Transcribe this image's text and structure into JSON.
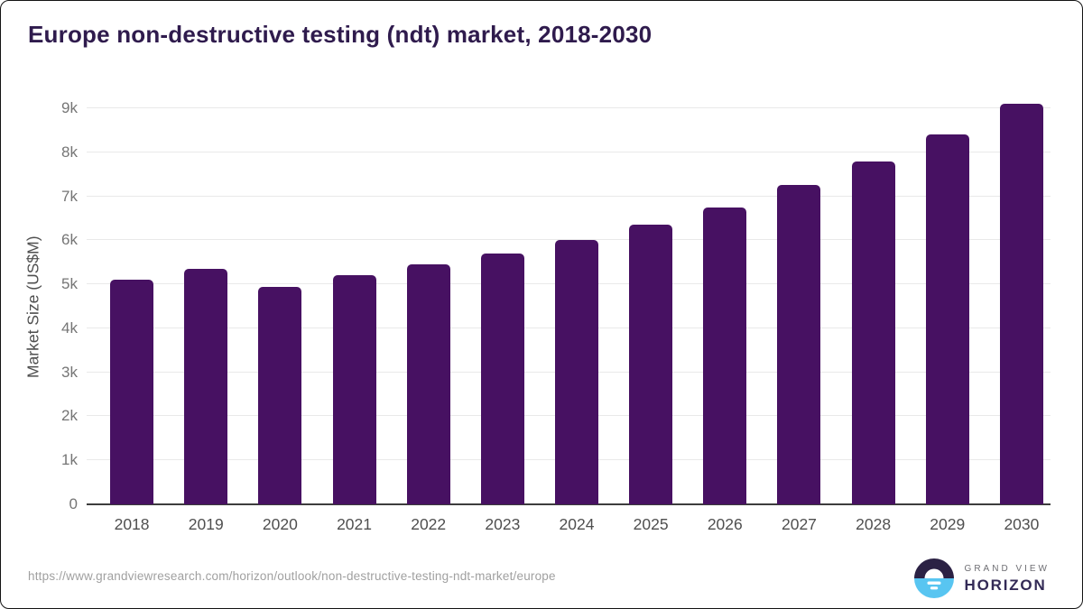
{
  "header": {
    "title": "Europe non-destructive testing (ndt) market, 2018-2030"
  },
  "chart_data": {
    "type": "bar",
    "title": "Europe non-destructive testing (ndt) market, 2018-2030",
    "xlabel": "",
    "ylabel": "Market Size (US$M)",
    "categories": [
      "2018",
      "2019",
      "2020",
      "2021",
      "2022",
      "2023",
      "2024",
      "2025",
      "2026",
      "2027",
      "2028",
      "2029",
      "2030"
    ],
    "values": [
      5100,
      5350,
      4950,
      5200,
      5450,
      5700,
      6000,
      6350,
      6750,
      7250,
      7800,
      8400,
      9100
    ],
    "unit": "US$M",
    "ylim": [
      0,
      9200
    ],
    "ytick_values": [
      0,
      1000,
      2000,
      3000,
      4000,
      5000,
      6000,
      7000,
      8000,
      9000
    ],
    "ytick_labels": [
      "0",
      "1k",
      "2k",
      "3k",
      "4k",
      "5k",
      "6k",
      "7k",
      "8k",
      "9k"
    ],
    "grid": "horizontal",
    "legend": false,
    "bar_color": "#471162"
  },
  "footer": {
    "source_url": "https://www.grandviewresearch.com/horizon/outlook/non-destructive-testing-ndt-market/europe",
    "logo": {
      "line1": "GRAND VIEW",
      "line2": "HORIZON",
      "icon": "horizon-sunset-circle-icon"
    }
  },
  "colors": {
    "title": "#2f1b4d",
    "bar": "#471162",
    "gridline": "#e9e9e9",
    "axis_line": "#3d3d3d",
    "tick_label": "#757575",
    "x_label": "#4f4f4f",
    "url": "#a0a0a0",
    "logo_dark": "#2b2144",
    "logo_blue": "#58c5f1",
    "logo_grand_view": "#6e6e73",
    "logo_horizon": "#332a56"
  }
}
